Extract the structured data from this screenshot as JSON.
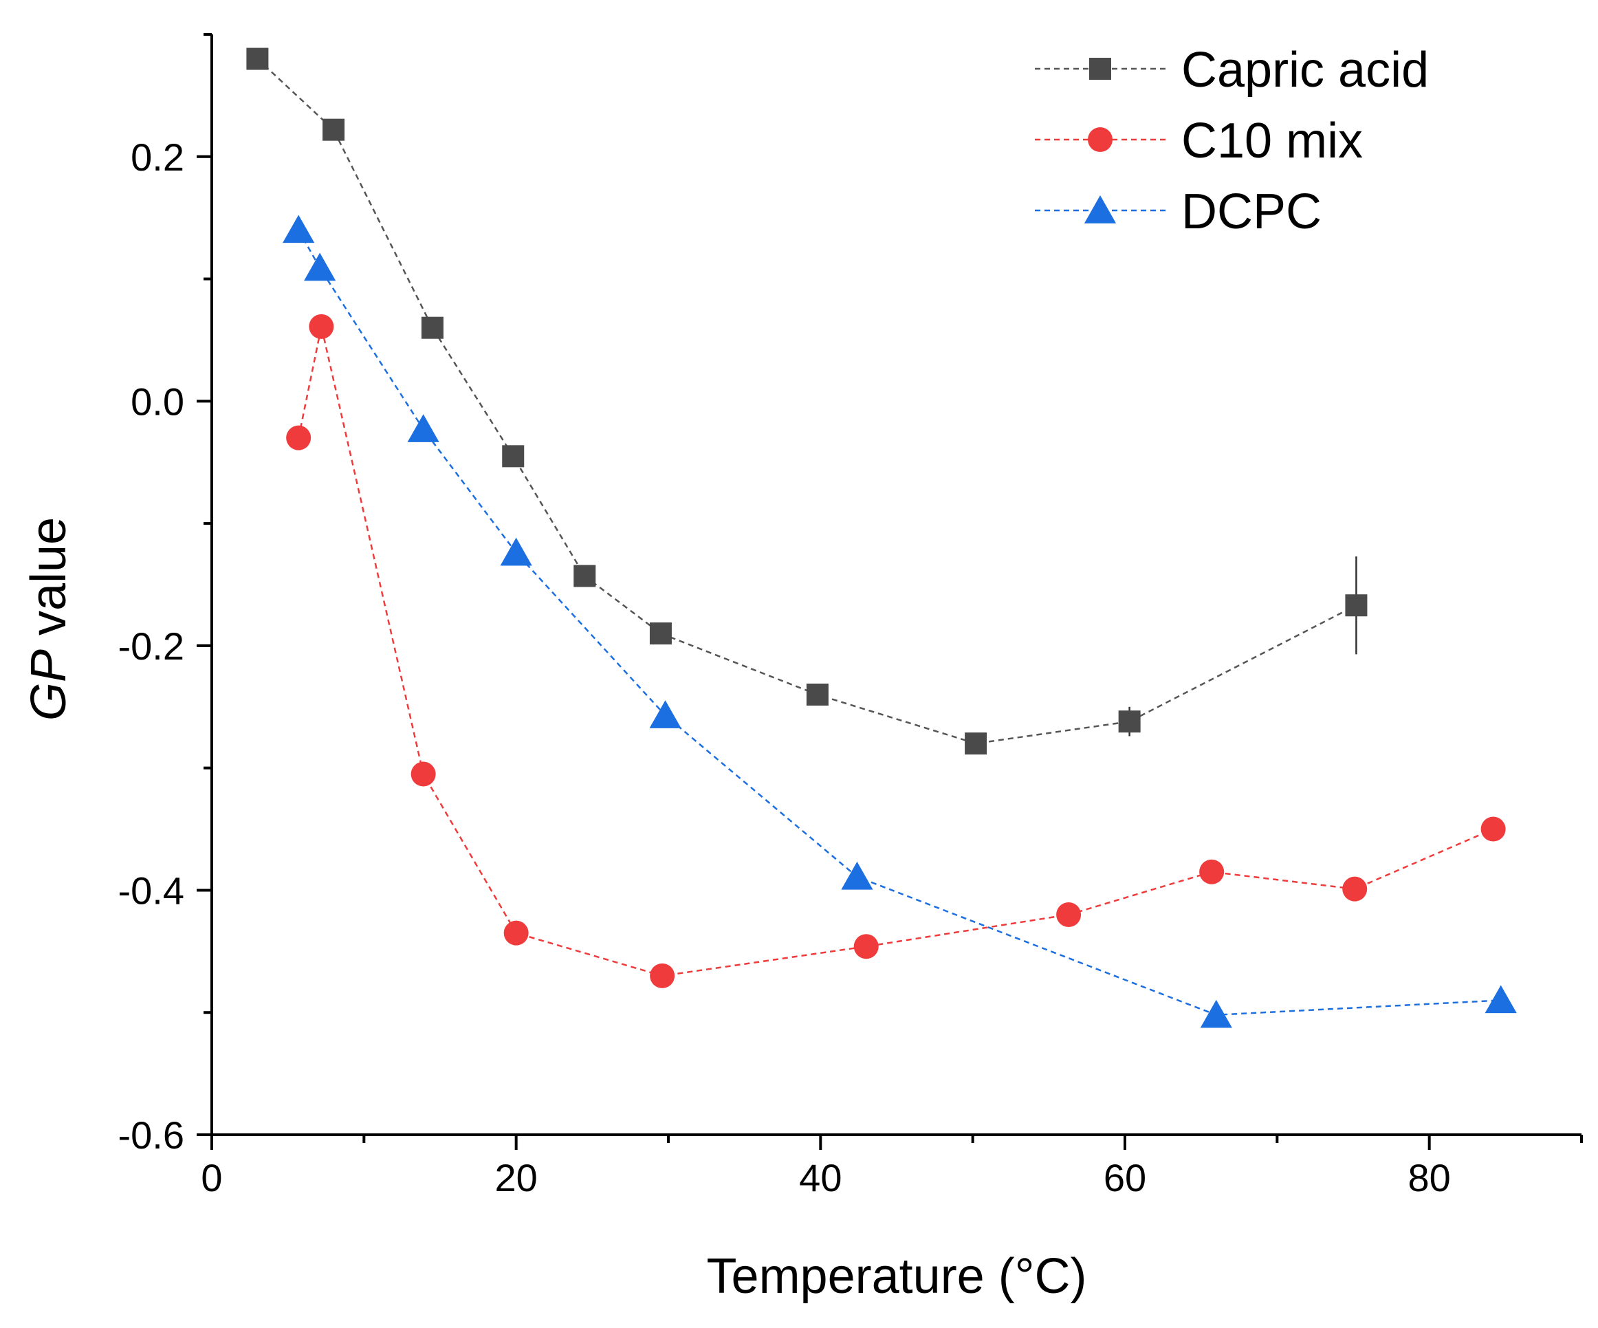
{
  "chart_data": {
    "type": "scatter",
    "xlabel": "Temperature (°C)",
    "ylabel_italic": "GP",
    "ylabel_rest": " value",
    "xlim": [
      0,
      90
    ],
    "ylim": [
      -0.6,
      0.3
    ],
    "xticks": [
      0,
      20,
      40,
      60,
      80
    ],
    "xticks_minor": [
      10,
      30,
      50,
      70,
      90
    ],
    "yticks": [
      -0.6,
      -0.4,
      -0.2,
      0.0,
      0.2
    ],
    "yticks_minor": [
      -0.5,
      -0.3,
      -0.1,
      0.1,
      0.3
    ],
    "xtick_labels": [
      "0",
      "20",
      "40",
      "60",
      "80"
    ],
    "ytick_labels": [
      "-0.6",
      "-0.4",
      "-0.2",
      "0.0",
      "0.2"
    ],
    "grid": false,
    "legend_position": "top-right",
    "line_style": "dashed",
    "series": [
      {
        "name": "Capric acid",
        "marker": "square",
        "color": "#4a4a4a",
        "line_color": "#555555",
        "x": [
          3,
          8,
          14.5,
          19.8,
          24.5,
          29.5,
          39.8,
          50.2,
          60.3,
          75.2
        ],
        "y": [
          0.28,
          0.222,
          0.06,
          -0.045,
          -0.143,
          -0.19,
          -0.24,
          -0.28,
          -0.262,
          -0.167
        ],
        "error": [
          0,
          0,
          0,
          0,
          0,
          0,
          0,
          0,
          0.012,
          0.04
        ]
      },
      {
        "name": "C10 mix",
        "marker": "circle",
        "color": "#ef3b3b",
        "line_color": "#ef3b3b",
        "x": [
          5.7,
          7.2,
          13.9,
          20,
          29.6,
          43,
          56.3,
          65.7,
          75.1,
          84.2
        ],
        "y": [
          -0.03,
          0.061,
          -0.305,
          -0.435,
          -0.47,
          -0.446,
          -0.42,
          -0.385,
          -0.399,
          -0.35
        ]
      },
      {
        "name": "DCPC",
        "marker": "triangle",
        "color": "#1c6fe0",
        "line_color": "#1c6fe0",
        "x": [
          5.7,
          7.1,
          13.9,
          20,
          29.8,
          42.4,
          66,
          84.7
        ],
        "y": [
          0.14,
          0.109,
          -0.023,
          -0.124,
          -0.257,
          -0.389,
          -0.502,
          -0.49
        ]
      }
    ]
  }
}
